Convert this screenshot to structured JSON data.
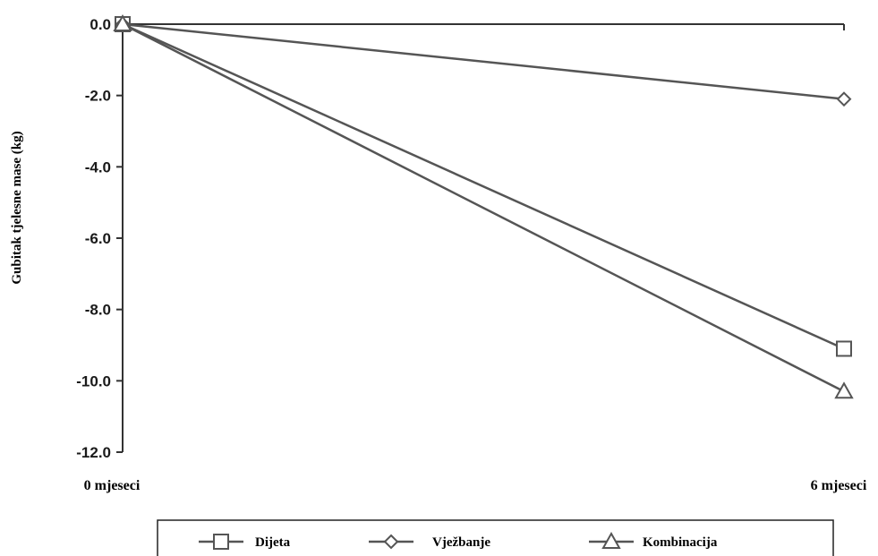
{
  "chart_data": {
    "type": "line",
    "ylabel": "Gubitak tjelesne mase (kg)",
    "xlabel": "",
    "x": [
      "0 mjeseci",
      "6 mjeseci"
    ],
    "ylim": [
      -12.0,
      0.0
    ],
    "yticks": [
      "0.0",
      "-2.0",
      "-4.0",
      "-6.0",
      "-8.0",
      "-10.0",
      "-12.0"
    ],
    "ytick_values": [
      0,
      -2,
      -4,
      -6,
      -8,
      -10,
      -12
    ],
    "grid": false,
    "legend_position": "bottom",
    "series": [
      {
        "name": "Dijeta",
        "marker": "square",
        "values": [
          0.0,
          -9.1
        ]
      },
      {
        "name": "Vježbanje",
        "marker": "diamond",
        "values": [
          0.0,
          -2.1
        ]
      },
      {
        "name": "Kombinacija",
        "marker": "triangle",
        "values": [
          0.0,
          -10.3
        ]
      }
    ],
    "colors": {
      "line": "#555555",
      "axis": "#333333",
      "text": "#1a1a1a"
    }
  }
}
